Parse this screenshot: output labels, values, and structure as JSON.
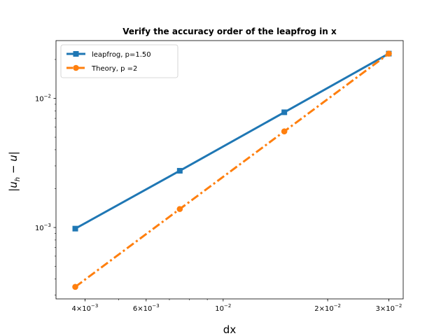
{
  "chart_data": {
    "type": "line",
    "title": "Verify the accuracy order of the leapfrog in x",
    "xlabel": "dx",
    "ylabel": "|u_h − u|",
    "xscale": "log",
    "yscale": "log",
    "xlim": [
      0.0033,
      0.033
    ],
    "ylim": [
      0.00028,
      0.028
    ],
    "grid": false,
    "legend_position": "top-left",
    "x_ticks": [
      {
        "value": 0.004,
        "mantissa": "4",
        "exp": "−3"
      },
      {
        "value": 0.006,
        "mantissa": "6",
        "exp": "−3"
      },
      {
        "value": 0.01,
        "mantissa": "",
        "exp": "−2"
      },
      {
        "value": 0.02,
        "mantissa": "2",
        "exp": "−2"
      },
      {
        "value": 0.03,
        "mantissa": "3",
        "exp": "−2"
      }
    ],
    "y_ticks": [
      {
        "value": 0.001,
        "exp": "−3"
      },
      {
        "value": 0.01,
        "exp": "−2"
      }
    ],
    "series": [
      {
        "name": "leapfrog, p=1.50",
        "color": "#1f77b4",
        "marker": "square",
        "linestyle": "solid",
        "x": [
          0.00375,
          0.0075,
          0.015,
          0.03
        ],
        "y": [
          0.00098,
          0.00275,
          0.0078,
          0.0222
        ]
      },
      {
        "name": "Theory, p =2",
        "color": "#ff7f0e",
        "marker": "circle",
        "linestyle": "dashdot",
        "x": [
          0.00375,
          0.0075,
          0.015,
          0.03
        ],
        "y": [
          0.000347,
          0.00139,
          0.00555,
          0.0222
        ]
      }
    ]
  }
}
